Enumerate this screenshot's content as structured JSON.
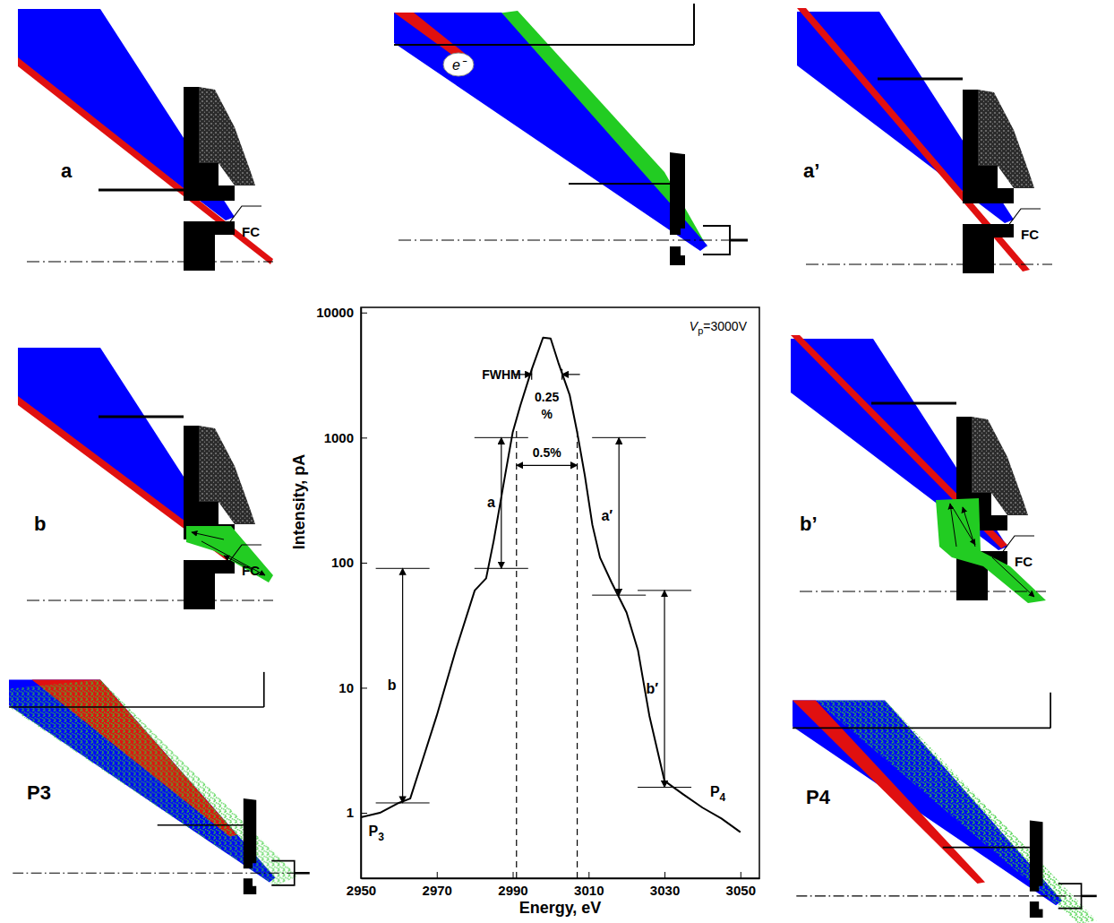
{
  "chart_data": {
    "type": "line",
    "color": "#000000",
    "log": "y",
    "xlabel": "Energy, eV",
    "ylabel": "Intensity, pA",
    "x": [
      2950,
      2955,
      2960,
      2963,
      2966,
      2970,
      2975,
      2980,
      2983,
      2985,
      2988,
      2990,
      2992,
      2995,
      2998,
      3000,
      3002,
      3005,
      3007,
      3009,
      3011,
      3013,
      3016,
      3020,
      3023,
      3026,
      3030,
      3035,
      3040,
      3045,
      3050
    ],
    "values": [
      0.92,
      1.0,
      1.2,
      1.3,
      2.5,
      6,
      20,
      60,
      75,
      150,
      500,
      1100,
      1800,
      3500,
      6300,
      6200,
      4000,
      2200,
      1100,
      500,
      200,
      110,
      70,
      40,
      20,
      6,
      1.8,
      1.4,
      1.1,
      0.9,
      0.7
    ],
    "xlim": [
      2950,
      3055
    ],
    "xticks": [
      2950,
      2970,
      2990,
      3010,
      3030,
      3050
    ],
    "ylim": [
      0.3,
      11000
    ],
    "yticks": [
      1,
      10,
      100,
      1000,
      10000
    ],
    "annotations": {
      "voltage": {
        "symbol": "V",
        "subscript": "p",
        "text": "=3000V"
      },
      "fwhm": {
        "label": "FWHM",
        "width": "0.25 %",
        "x": [
          2995,
          3003
        ],
        "y": 3200
      },
      "window": {
        "label": "0.5%",
        "x": [
          2991,
          3007
        ],
        "y": 600,
        "top": 1200
      },
      "ranges": [
        {
          "label": "a",
          "x": 2987,
          "from": 1000,
          "to": 90
        },
        {
          "label": "b",
          "x": 2961,
          "from": 90,
          "to": 1.2
        },
        {
          "label": "a′",
          "x": 3018,
          "from": 1000,
          "to": 55
        },
        {
          "label": "b′",
          "x": 3030,
          "from": 60,
          "to": 1.6
        }
      ],
      "ends": [
        {
          "symbol": "P",
          "subscript": "3",
          "x": 2952,
          "y": 0.65
        },
        {
          "symbol": "P",
          "subscript": "4",
          "x": 3042,
          "y": 1.35
        }
      ]
    }
  },
  "panels": {
    "a": {
      "label": "a",
      "fc": "FC"
    },
    "a_prime": {
      "label": "a’",
      "fc": "FC"
    },
    "b": {
      "label": "b",
      "fc": "FC"
    },
    "b_prime": {
      "label": "b’",
      "fc": "FC"
    },
    "top": {
      "electron": "e⁻"
    },
    "p3": {
      "label": "P3"
    },
    "p4": {
      "label": "P4"
    }
  }
}
